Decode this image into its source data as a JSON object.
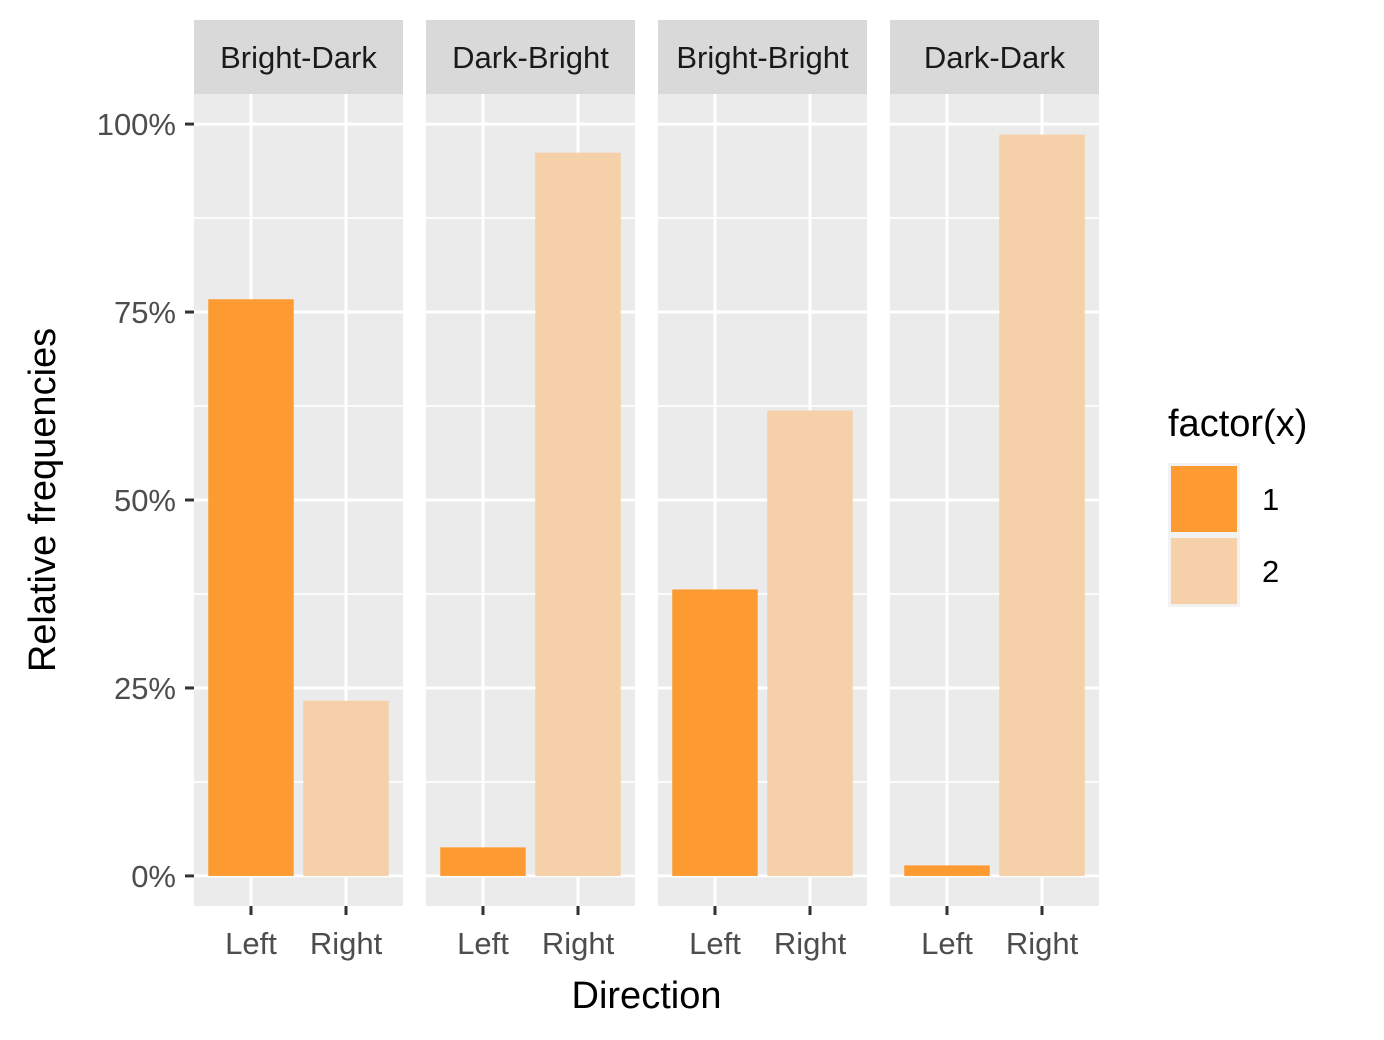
{
  "chart_data": {
    "type": "bar",
    "facets": [
      "Bright-Dark",
      "Dark-Bright",
      "Bright-Bright",
      "Dark-Dark"
    ],
    "categories": [
      "Left",
      "Right"
    ],
    "fill_map": {
      "Left": "1",
      "Right": "2"
    },
    "values": [
      [
        0.767,
        0.233
      ],
      [
        0.038,
        0.962
      ],
      [
        0.381,
        0.619
      ],
      [
        0.014,
        0.986
      ]
    ],
    "xlabel": "Direction",
    "ylabel": "Relative frequencies",
    "ylim": [
      -0.04,
      1.04
    ],
    "yticks": [
      0,
      0.25,
      0.5,
      0.75,
      1
    ],
    "ytick_labels": [
      "0%",
      "25%",
      "50%",
      "75%",
      "100%"
    ],
    "grid": true,
    "legend": {
      "title": "factor(x)",
      "position": "right",
      "items": [
        {
          "label": "1",
          "color": "#FD9A31"
        },
        {
          "label": "2",
          "color": "#F6D0A8"
        }
      ]
    },
    "colors": {
      "panel_bg": "#EBEBEB",
      "strip_bg": "#D9D9D9",
      "grid": "#FFFFFF"
    }
  }
}
